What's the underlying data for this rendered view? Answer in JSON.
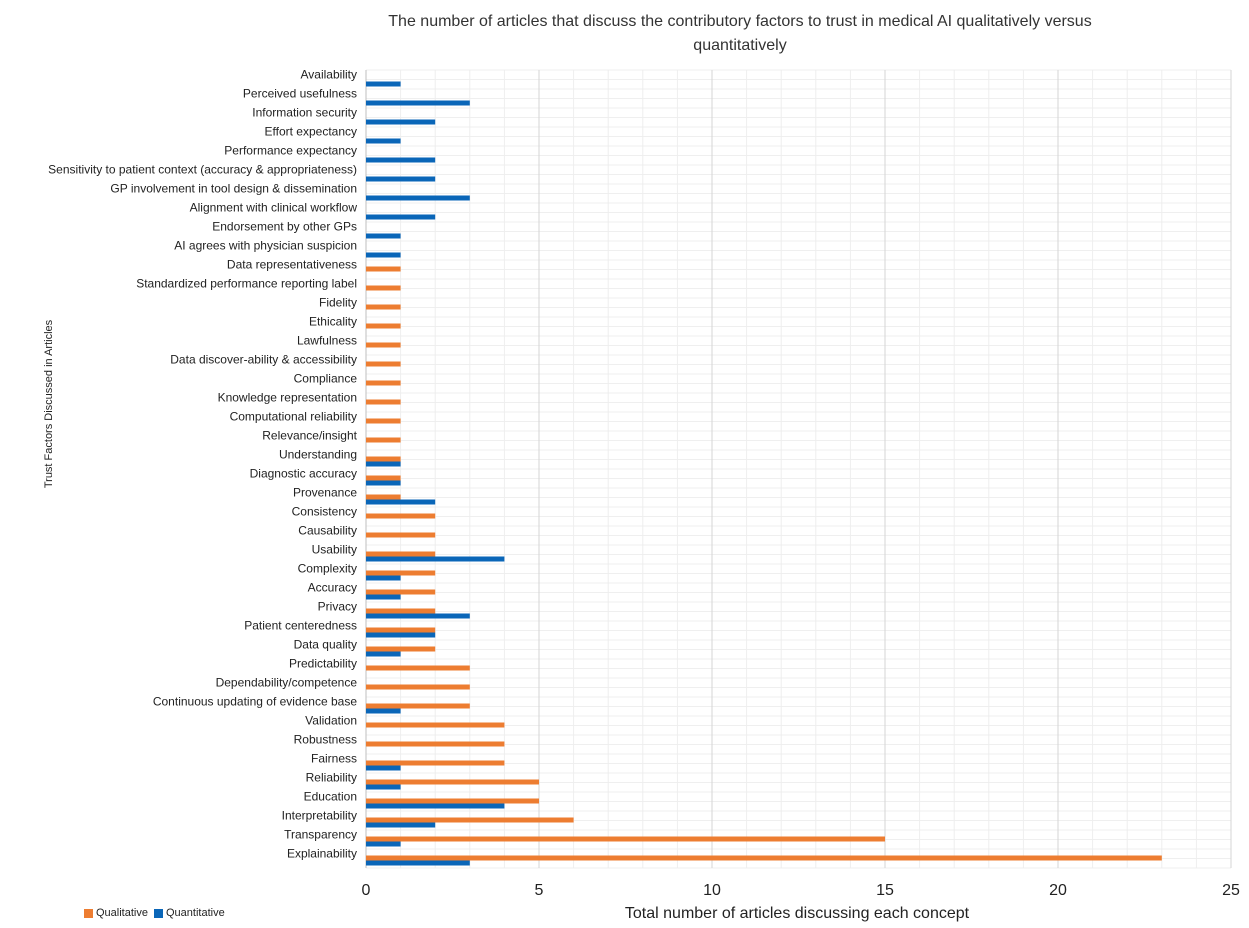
{
  "chart_data": {
    "type": "bar",
    "orientation": "horizontal",
    "title": "The number of articles that discuss the contributory factors to trust in medical AI qualitatively versus quantitatively",
    "xlabel": "Total number of articles discussing each concept",
    "ylabel": "Trust Factors Discussed in Articles",
    "xlim": [
      0,
      25
    ],
    "xticks": [
      "0",
      "5",
      "10",
      "15",
      "20",
      "25"
    ],
    "grid": true,
    "legend_position": "bottom-left",
    "categories": [
      "Availability",
      "Perceived usefulness",
      "Information security",
      "Effort expectancy",
      "Performance expectancy",
      "Sensitivity to patient context (accuracy & appropriateness)",
      "GP involvement in tool design & dissemination",
      "Alignment with clinical workflow",
      "Endorsement by other GPs",
      "AI agrees with physician suspicion",
      "Data representativeness",
      "Standardized performance reporting label",
      "Fidelity",
      "Ethicality",
      "Lawfulness",
      "Data discover-ability & accessibility",
      "Compliance",
      "Knowledge representation",
      "Computational reliability",
      "Relevance/insight",
      "Understanding",
      "Diagnostic accuracy",
      "Provenance",
      "Consistency",
      "Causability",
      "Usability",
      "Complexity",
      "Accuracy",
      "Privacy",
      "Patient centeredness",
      "Data quality",
      "Predictability",
      "Dependability/competence",
      "Continuous updating of evidence base",
      "Validation",
      "Robustness",
      "Fairness",
      "Reliability",
      "Education",
      "Interpretability",
      "Transparency",
      "Explainability"
    ],
    "series": [
      {
        "name": "Qualitative",
        "color": "#ED7D31",
        "values": [
          0,
          0,
          0,
          0,
          0,
          0,
          0,
          0,
          0,
          0,
          1,
          1,
          1,
          1,
          1,
          1,
          1,
          1,
          1,
          1,
          1,
          1,
          1,
          2,
          2,
          2,
          2,
          2,
          2,
          2,
          2,
          3,
          3,
          3,
          4,
          4,
          4,
          5,
          5,
          6,
          15,
          23
        ]
      },
      {
        "name": "Quantitative",
        "color": "#0A66B8",
        "values": [
          1,
          3,
          2,
          1,
          2,
          2,
          3,
          2,
          1,
          1,
          0,
          0,
          0,
          0,
          0,
          0,
          0,
          0,
          0,
          0,
          1,
          1,
          2,
          0,
          0,
          4,
          1,
          1,
          3,
          2,
          1,
          0,
          0,
          1,
          0,
          0,
          1,
          1,
          4,
          2,
          1,
          3
        ]
      }
    ]
  }
}
